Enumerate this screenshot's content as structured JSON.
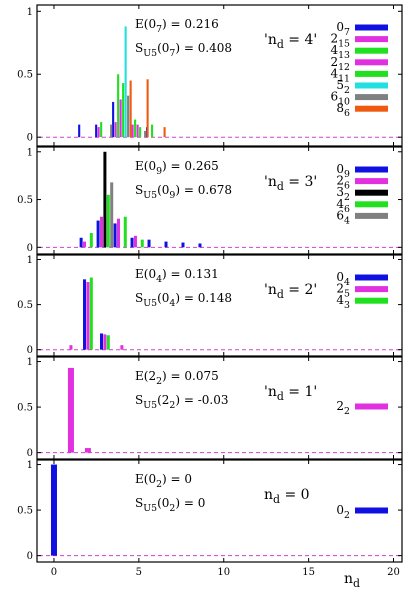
{
  "chart_data": [
    {
      "type": "bar",
      "xlim": [
        -1,
        20.5
      ],
      "ylim": [
        -0.07,
        1.05
      ],
      "yticks": [
        "0",
        "0.5",
        "1"
      ],
      "yticks_values": [
        0,
        0.5,
        1
      ],
      "xticks": [],
      "xticks_values": [],
      "xlabel": "",
      "grid": false,
      "legend_position": "right",
      "annotations": [
        {
          "main": "E(0",
          "sub": "7",
          "tail": ") = 0.216"
        },
        {
          "main": "S",
          "sub": "U5",
          "mid": "(0",
          "sub2": "7",
          "tail": ") = 0.408"
        }
      ],
      "nd_label": {
        "main": "'n",
        "sub": "d",
        "tail": " = 4'"
      },
      "series": [
        {
          "main": "0",
          "sub": "7",
          "color": "#1010e0",
          "x": [
            2,
            3,
            4,
            6
          ],
          "values": [
            0.1,
            0.1,
            0.28,
            0.08
          ]
        },
        {
          "main": "2",
          "sub": "15",
          "color": "#e030e0",
          "x": [
            3,
            4,
            5
          ],
          "values": [
            0.08,
            0.12,
            0.1
          ]
        },
        {
          "main": "4",
          "sub": "13",
          "color": "#20e020",
          "x": [
            3,
            4,
            5,
            6
          ],
          "values": [
            0.12,
            0.5,
            0.14,
            0.1
          ]
        },
        {
          "main": "2",
          "sub": "12",
          "color": "#e030e0",
          "x": [
            4,
            5
          ],
          "values": [
            0.3,
            0.1
          ]
        },
        {
          "main": "4",
          "sub": "11",
          "color": "#20e020",
          "x": [
            4,
            5
          ],
          "values": [
            0.43,
            0.08
          ]
        },
        {
          "main": "5",
          "sub": "2",
          "color": "#20e0e0",
          "x": [
            4
          ],
          "values": [
            0.88
          ]
        },
        {
          "main": "6",
          "sub": "10",
          "color": "#808080",
          "x": [
            3,
            4,
            5
          ],
          "values": [
            0.1,
            0.33,
            0.05
          ]
        },
        {
          "main": "8",
          "sub": "6",
          "color": "#f05a10",
          "x": [
            4,
            5,
            6
          ],
          "values": [
            0.45,
            0.46,
            0.08
          ]
        }
      ]
    },
    {
      "type": "bar",
      "xlim": [
        -1,
        20.5
      ],
      "ylim": [
        -0.07,
        1.05
      ],
      "yticks": [
        "0",
        "0.5",
        "1"
      ],
      "yticks_values": [
        0,
        0.5,
        1
      ],
      "xticks": [],
      "xticks_values": [],
      "xlabel": "",
      "grid": false,
      "legend_position": "right",
      "annotations": [
        {
          "main": "E(0",
          "sub": "9",
          "tail": ") = 0.265"
        },
        {
          "main": "S",
          "sub": "U5",
          "mid": "(0",
          "sub2": "9",
          "tail": ") = 0.678"
        }
      ],
      "nd_label": {
        "main": "'n",
        "sub": "d",
        "tail": " = 3'"
      },
      "series": [
        {
          "main": "0",
          "sub": "9",
          "color": "#1010e0",
          "x": [
            2,
            3,
            4,
            5,
            6,
            7,
            8,
            9
          ],
          "values": [
            0.1,
            0.28,
            0.25,
            0.1,
            0.08,
            0.06,
            0.05,
            0.04
          ]
        },
        {
          "main": "2",
          "sub": "6",
          "color": "#e030e0",
          "x": [
            2,
            3,
            4,
            5
          ],
          "values": [
            0.06,
            0.32,
            0.3,
            0.12
          ]
        },
        {
          "main": "3",
          "sub": "2",
          "color": "#000000",
          "x": [
            3
          ],
          "values": [
            1.0
          ]
        },
        {
          "main": "4",
          "sub": "6",
          "color": "#20e020",
          "x": [
            2,
            3,
            4,
            5
          ],
          "values": [
            0.15,
            0.55,
            0.32,
            0.08
          ]
        },
        {
          "main": "6",
          "sub": "4",
          "color": "#808080",
          "x": [
            3
          ],
          "values": [
            0.68
          ]
        }
      ]
    },
    {
      "type": "bar",
      "xlim": [
        -1,
        20.5
      ],
      "ylim": [
        -0.07,
        1.05
      ],
      "yticks": [
        "0",
        "0.5",
        "1"
      ],
      "yticks_values": [
        0,
        0.5,
        1
      ],
      "xticks": [],
      "xticks_values": [],
      "xlabel": "",
      "grid": false,
      "legend_position": "right",
      "annotations": [
        {
          "main": "E(0",
          "sub": "4",
          "tail": ") = 0.131"
        },
        {
          "main": "S",
          "sub": "U5",
          "mid": "(0",
          "sub2": "4",
          "tail": ") = 0.148"
        }
      ],
      "nd_label": {
        "main": "'n",
        "sub": "d",
        "tail": " = 2'"
      },
      "series": [
        {
          "main": "0",
          "sub": "4",
          "color": "#1010e0",
          "x": [
            2,
            3
          ],
          "values": [
            0.78,
            0.18
          ]
        },
        {
          "main": "2",
          "sub": "5",
          "color": "#e030e0",
          "x": [
            1,
            2,
            3,
            4
          ],
          "values": [
            0.05,
            0.75,
            0.17,
            0.05
          ]
        },
        {
          "main": "4",
          "sub": "3",
          "color": "#20e020",
          "x": [
            2,
            3
          ],
          "values": [
            0.8,
            0.16
          ]
        }
      ]
    },
    {
      "type": "bar",
      "xlim": [
        -1,
        20.5
      ],
      "ylim": [
        -0.07,
        1.05
      ],
      "yticks": [
        "0",
        "0.5",
        "1"
      ],
      "yticks_values": [
        0,
        0.5,
        1
      ],
      "xticks": [],
      "xticks_values": [],
      "xlabel": "",
      "grid": false,
      "legend_position": "right",
      "annotations": [
        {
          "main": "E(2",
          "sub": "2",
          "tail": ") = 0.075"
        },
        {
          "main": "S",
          "sub": "U5",
          "mid": "(2",
          "sub2": "2",
          "tail": ") = -0.03"
        }
      ],
      "nd_label": {
        "main": "'n",
        "sub": "d",
        "tail": " = 1'"
      },
      "series": [
        {
          "main": "2",
          "sub": "2",
          "color": "#e030e0",
          "x": [
            1,
            2
          ],
          "values": [
            0.93,
            0.05
          ]
        }
      ]
    },
    {
      "type": "bar",
      "xlim": [
        -1,
        20.5
      ],
      "ylim": [
        -0.07,
        1.05
      ],
      "yticks": [
        "0",
        "0.5",
        "1"
      ],
      "yticks_values": [
        0,
        0.5,
        1
      ],
      "xticks": [
        "0",
        "5",
        "10",
        "15",
        "20"
      ],
      "xticks_values": [
        0,
        5,
        10,
        15,
        20
      ],
      "xlabel": {
        "main": "n",
        "sub": "d"
      },
      "grid": false,
      "legend_position": "right",
      "annotations": [
        {
          "main": "E(0",
          "sub": "2",
          "tail": ") = 0"
        },
        {
          "main": "S",
          "sub": "U5",
          "mid": "(0",
          "sub2": "2",
          "tail": ") = 0"
        }
      ],
      "nd_label": {
        "main": "n",
        "sub": "d",
        "tail": " = 0"
      },
      "series": [
        {
          "main": "0",
          "sub": "2",
          "color": "#1010e0",
          "x": [
            0
          ],
          "values": [
            1.0
          ]
        }
      ]
    }
  ]
}
